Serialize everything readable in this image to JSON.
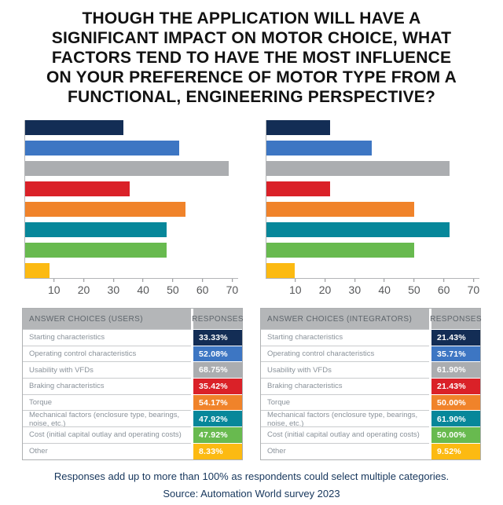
{
  "title_lines": [
    "THOUGH THE APPLICATION WILL HAVE A",
    "SIGNIFICANT IMPACT ON MOTOR CHOICE, WHAT",
    "FACTORS TEND TO HAVE THE MOST INFLUENCE",
    "ON YOUR PREFERENCE OF MOTOR TYPE FROM A",
    "FUNCTIONAL, ENGINEERING PERSPECTIVE?"
  ],
  "palette": [
    "#132d55",
    "#3d76c3",
    "#abadb0",
    "#da2128",
    "#f0832a",
    "#07879a",
    "#68ba4f",
    "#fcba12"
  ],
  "axis_color": "#b3b5b7",
  "chart_data": [
    {
      "type": "bar",
      "orientation": "horizontal",
      "group": "Users",
      "categories": [
        "Starting characteristics",
        "Operating control characteristics",
        "Usability with VFDs",
        "Braking characteristics",
        "Torque",
        "Mechanical factors (enclosure type, bearings, noise, etc.)",
        "Cost (initial capital outlay and operating costs)",
        "Other"
      ],
      "values": [
        33.33,
        52.08,
        68.75,
        35.42,
        54.17,
        47.92,
        47.92,
        8.33
      ],
      "unit": "%",
      "xlim": [
        0,
        72
      ],
      "ticks": [
        10,
        20,
        30,
        40,
        50,
        60,
        70
      ],
      "grid": false,
      "legend": false
    },
    {
      "type": "bar",
      "orientation": "horizontal",
      "group": "Integrators",
      "categories": [
        "Starting characteristics",
        "Operating control characteristics",
        "Usability with VFDs",
        "Braking characteristics",
        "Torque",
        "Mechanical factors (enclosure type, bearings, noise, etc.)",
        "Cost (initial capital outlay and operating costs)",
        "Other"
      ],
      "values": [
        21.43,
        35.71,
        61.9,
        21.43,
        50.0,
        61.9,
        50.0,
        9.52
      ],
      "unit": "%",
      "xlim": [
        0,
        72
      ],
      "ticks": [
        10,
        20,
        30,
        40,
        50,
        60,
        70
      ],
      "grid": false,
      "legend": false
    }
  ],
  "tables": [
    {
      "header_choices": "ANSWER CHOICES (USERS)",
      "header_responses": "RESPONSES",
      "rows": [
        {
          "label": "Starting characteristics",
          "value": "33.33%"
        },
        {
          "label": "Operating control characteristics",
          "value": "52.08%"
        },
        {
          "label": "Usability with VFDs",
          "value": "68.75%"
        },
        {
          "label": "Braking characteristics",
          "value": "35.42%"
        },
        {
          "label": "Torque",
          "value": "54.17%"
        },
        {
          "label": "Mechanical factors (enclosure type, bearings, noise, etc.)",
          "value": "47.92%"
        },
        {
          "label": "Cost (initial capital outlay and operating costs)",
          "value": "47.92%"
        },
        {
          "label": "Other",
          "value": "8.33%"
        }
      ]
    },
    {
      "header_choices": "ANSWER CHOICES (INTEGRATORS)",
      "header_responses": "RESPONSES",
      "rows": [
        {
          "label": "Starting characteristics",
          "value": "21.43%"
        },
        {
          "label": "Operating control characteristics",
          "value": "35.71%"
        },
        {
          "label": "Usability with VFDs",
          "value": "61.90%"
        },
        {
          "label": "Braking characteristics",
          "value": "21.43%"
        },
        {
          "label": "Torque",
          "value": "50.00%"
        },
        {
          "label": "Mechanical factors (enclosure type, bearings, noise, etc.)",
          "value": "61.90%"
        },
        {
          "label": "Cost (initial capital outlay and operating costs)",
          "value": "50.00%"
        },
        {
          "label": "Other",
          "value": "9.52%"
        }
      ]
    }
  ],
  "footer": {
    "note": "Responses add up to more than 100% as respondents could select multiple categories.",
    "source": "Source: Automation World survey 2023"
  }
}
